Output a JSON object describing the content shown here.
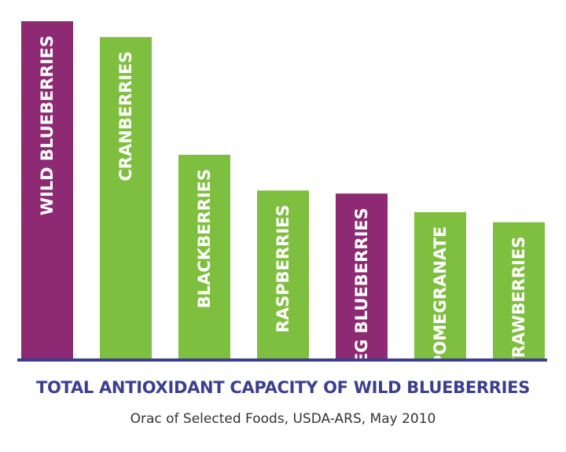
{
  "chart_data": {
    "type": "bar",
    "title": "TOTAL ANTIOXIDANT CAPACITY OF WILD BLUEBERRIES",
    "subtitle": "Orac of Selected Foods, USDA-ARS, May 2010",
    "categories": [
      "WILD BLUEBERRIES",
      "CRANBERRIES",
      "BLACKBERRIES",
      "RASPBERRIES",
      "REG BLUEBERRIES",
      "POMEGRANATE",
      "STRAWBERRIES"
    ],
    "values": [
      100,
      95.3,
      60.4,
      49.8,
      48.9,
      43.4,
      40.4
    ],
    "ylim": [
      0,
      100
    ],
    "grid": false,
    "legend": "none",
    "bar_colors": [
      "#8e2a73",
      "#7fbf3f",
      "#7fbf3f",
      "#7fbf3f",
      "#8e2a73",
      "#7fbf3f",
      "#7fbf3f"
    ],
    "axis_color": "#3c3f8f"
  }
}
